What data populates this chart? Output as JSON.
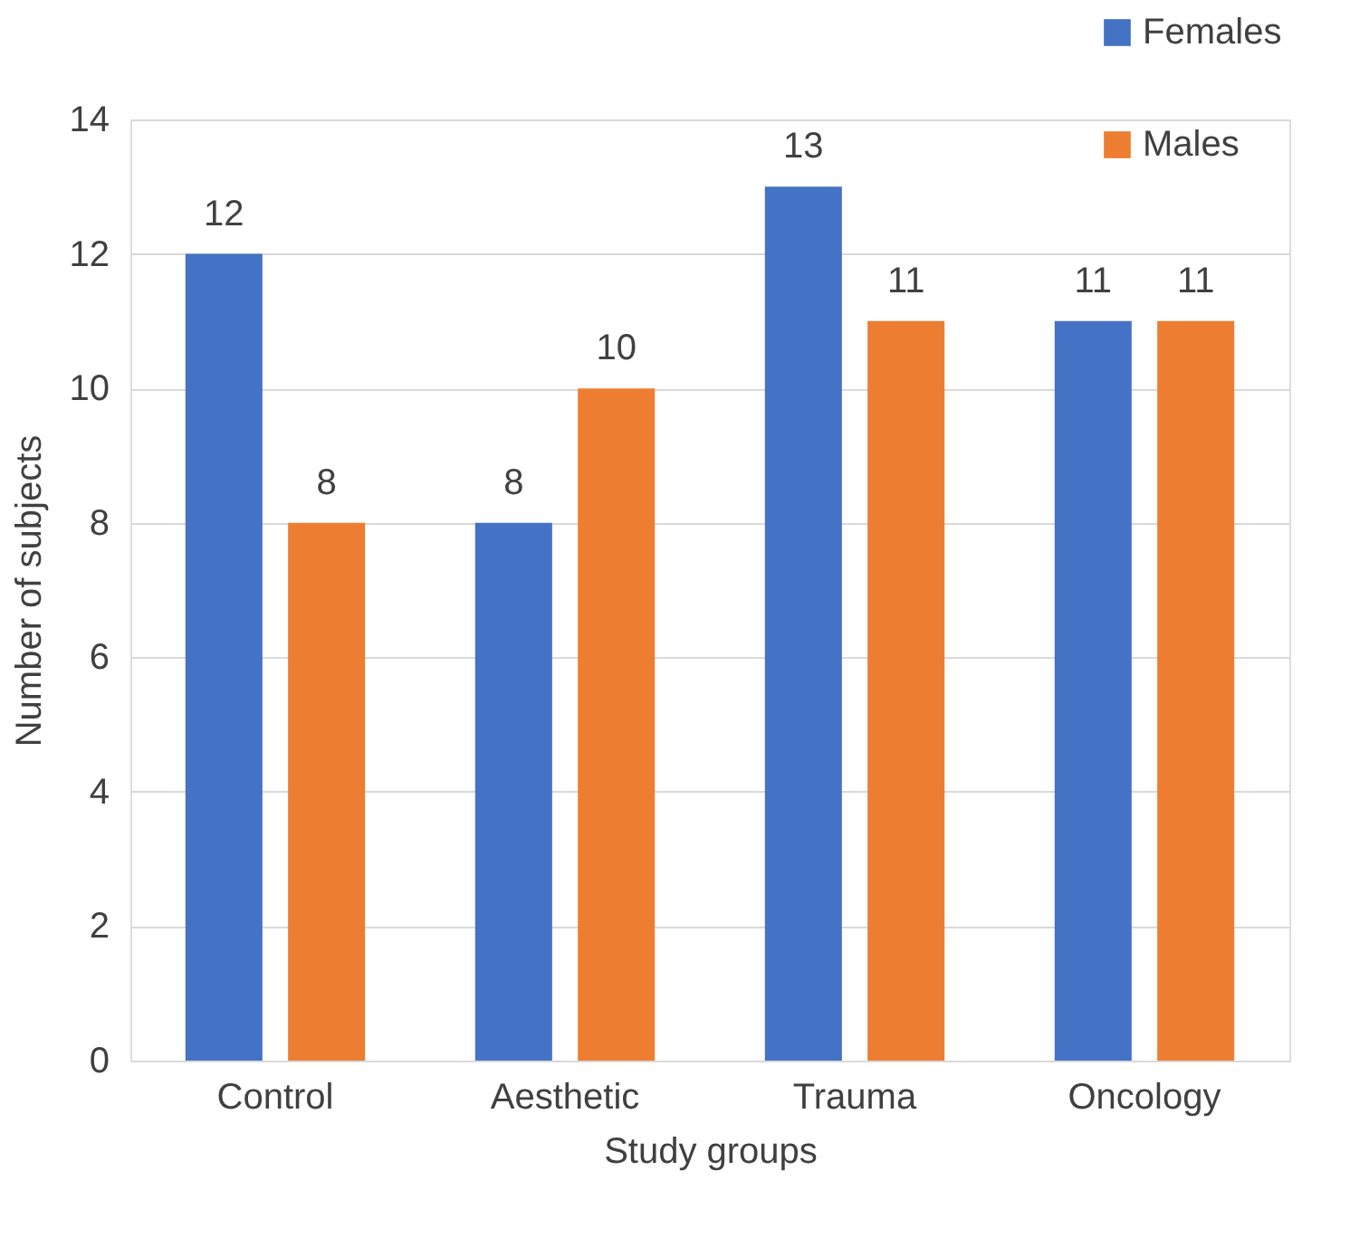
{
  "chart_data": {
    "type": "bar",
    "xlabel": "Study groups",
    "ylabel": "Number of subjects",
    "categories": [
      "Control",
      "Aesthetic",
      "Trauma",
      "Oncology"
    ],
    "series": [
      {
        "name": "Females",
        "color": "#4472c4",
        "values": [
          12,
          8,
          13,
          11
        ]
      },
      {
        "name": "Males",
        "color": "#ed7d31",
        "values": [
          8,
          10,
          11,
          11
        ]
      }
    ],
    "ylim": [
      0,
      14
    ],
    "yticks": [
      0,
      2,
      4,
      6,
      8,
      10,
      12,
      14
    ],
    "grid": "y",
    "legend": "top right",
    "data_labels": true
  }
}
